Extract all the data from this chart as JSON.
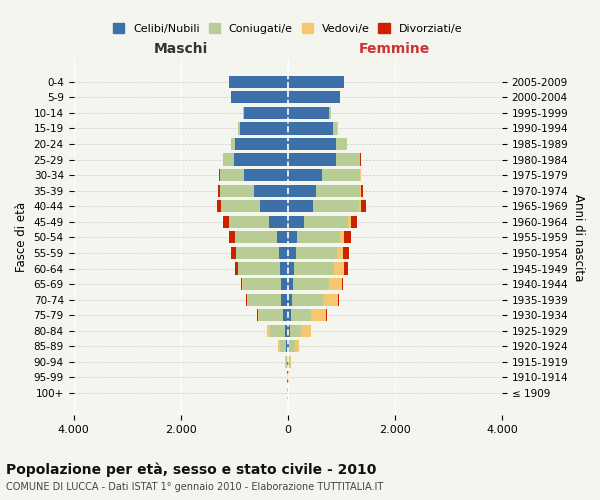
{
  "age_groups": [
    "100+",
    "95-99",
    "90-94",
    "85-89",
    "80-84",
    "75-79",
    "70-74",
    "65-69",
    "60-64",
    "55-59",
    "50-54",
    "45-49",
    "40-44",
    "35-39",
    "30-34",
    "25-29",
    "20-24",
    "15-19",
    "10-14",
    "5-9",
    "0-4"
  ],
  "birth_years": [
    "≤ 1909",
    "1910-1914",
    "1915-1919",
    "1920-1924",
    "1925-1929",
    "1930-1934",
    "1935-1939",
    "1940-1944",
    "1945-1949",
    "1950-1954",
    "1955-1959",
    "1960-1964",
    "1965-1969",
    "1970-1974",
    "1975-1979",
    "1980-1984",
    "1985-1989",
    "1990-1994",
    "1995-1999",
    "2000-2004",
    "2005-2009"
  ],
  "male": {
    "celibi": [
      2,
      4,
      10,
      30,
      50,
      80,
      120,
      130,
      140,
      160,
      200,
      350,
      520,
      620,
      820,
      1000,
      980,
      900,
      820,
      1050,
      1100
    ],
    "coniugati": [
      2,
      8,
      30,
      120,
      280,
      450,
      620,
      700,
      780,
      800,
      780,
      750,
      720,
      650,
      450,
      200,
      80,
      30,
      10,
      5,
      3
    ],
    "vedovi": [
      1,
      4,
      10,
      30,
      50,
      30,
      20,
      15,
      10,
      5,
      5,
      3,
      2,
      1,
      0,
      0,
      0,
      0,
      0,
      0,
      0
    ],
    "divorziati": [
      0,
      1,
      2,
      3,
      5,
      8,
      15,
      20,
      60,
      100,
      120,
      100,
      80,
      30,
      10,
      5,
      2,
      1,
      0,
      0,
      0
    ]
  },
  "female": {
    "nubili": [
      2,
      4,
      10,
      30,
      50,
      60,
      80,
      100,
      120,
      150,
      180,
      300,
      480,
      520,
      650,
      900,
      900,
      850,
      780,
      980,
      1050
    ],
    "coniugate": [
      2,
      8,
      30,
      100,
      200,
      380,
      580,
      680,
      750,
      780,
      800,
      820,
      850,
      830,
      700,
      450,
      200,
      80,
      20,
      5,
      3
    ],
    "vedove": [
      1,
      5,
      20,
      80,
      180,
      280,
      280,
      230,
      180,
      100,
      80,
      60,
      40,
      20,
      10,
      5,
      2,
      1,
      0,
      0,
      0
    ],
    "divorziate": [
      0,
      1,
      2,
      3,
      5,
      8,
      10,
      20,
      80,
      120,
      130,
      120,
      100,
      40,
      15,
      5,
      2,
      1,
      0,
      0,
      0
    ]
  },
  "colors": {
    "celibi": "#3d6fa8",
    "coniugati": "#b8cc96",
    "vedovi": "#f5c76e",
    "divorziati": "#cc2200"
  },
  "xlim": 4000,
  "title": "Popolazione per età, sesso e stato civile - 2010",
  "subtitle": "COMUNE DI LUCCA - Dati ISTAT 1° gennaio 2010 - Elaborazione TUTTITALIA.IT",
  "xlabel_left": "Maschi",
  "xlabel_right": "Femmine",
  "ylabel_left": "Fasce di età",
  "ylabel_right": "Anni di nascita",
  "legend_labels": [
    "Celibi/Nubili",
    "Coniugati/e",
    "Vedovi/e",
    "Divorziati/e"
  ],
  "bg_color": "#f5f5f0",
  "plot_bg": "#f5f5f0",
  "xtick_vals": [
    -4000,
    -2000,
    0,
    2000,
    4000
  ],
  "xtick_labels": [
    "4.000",
    "2.000",
    "0",
    "2.000",
    "4.000"
  ]
}
